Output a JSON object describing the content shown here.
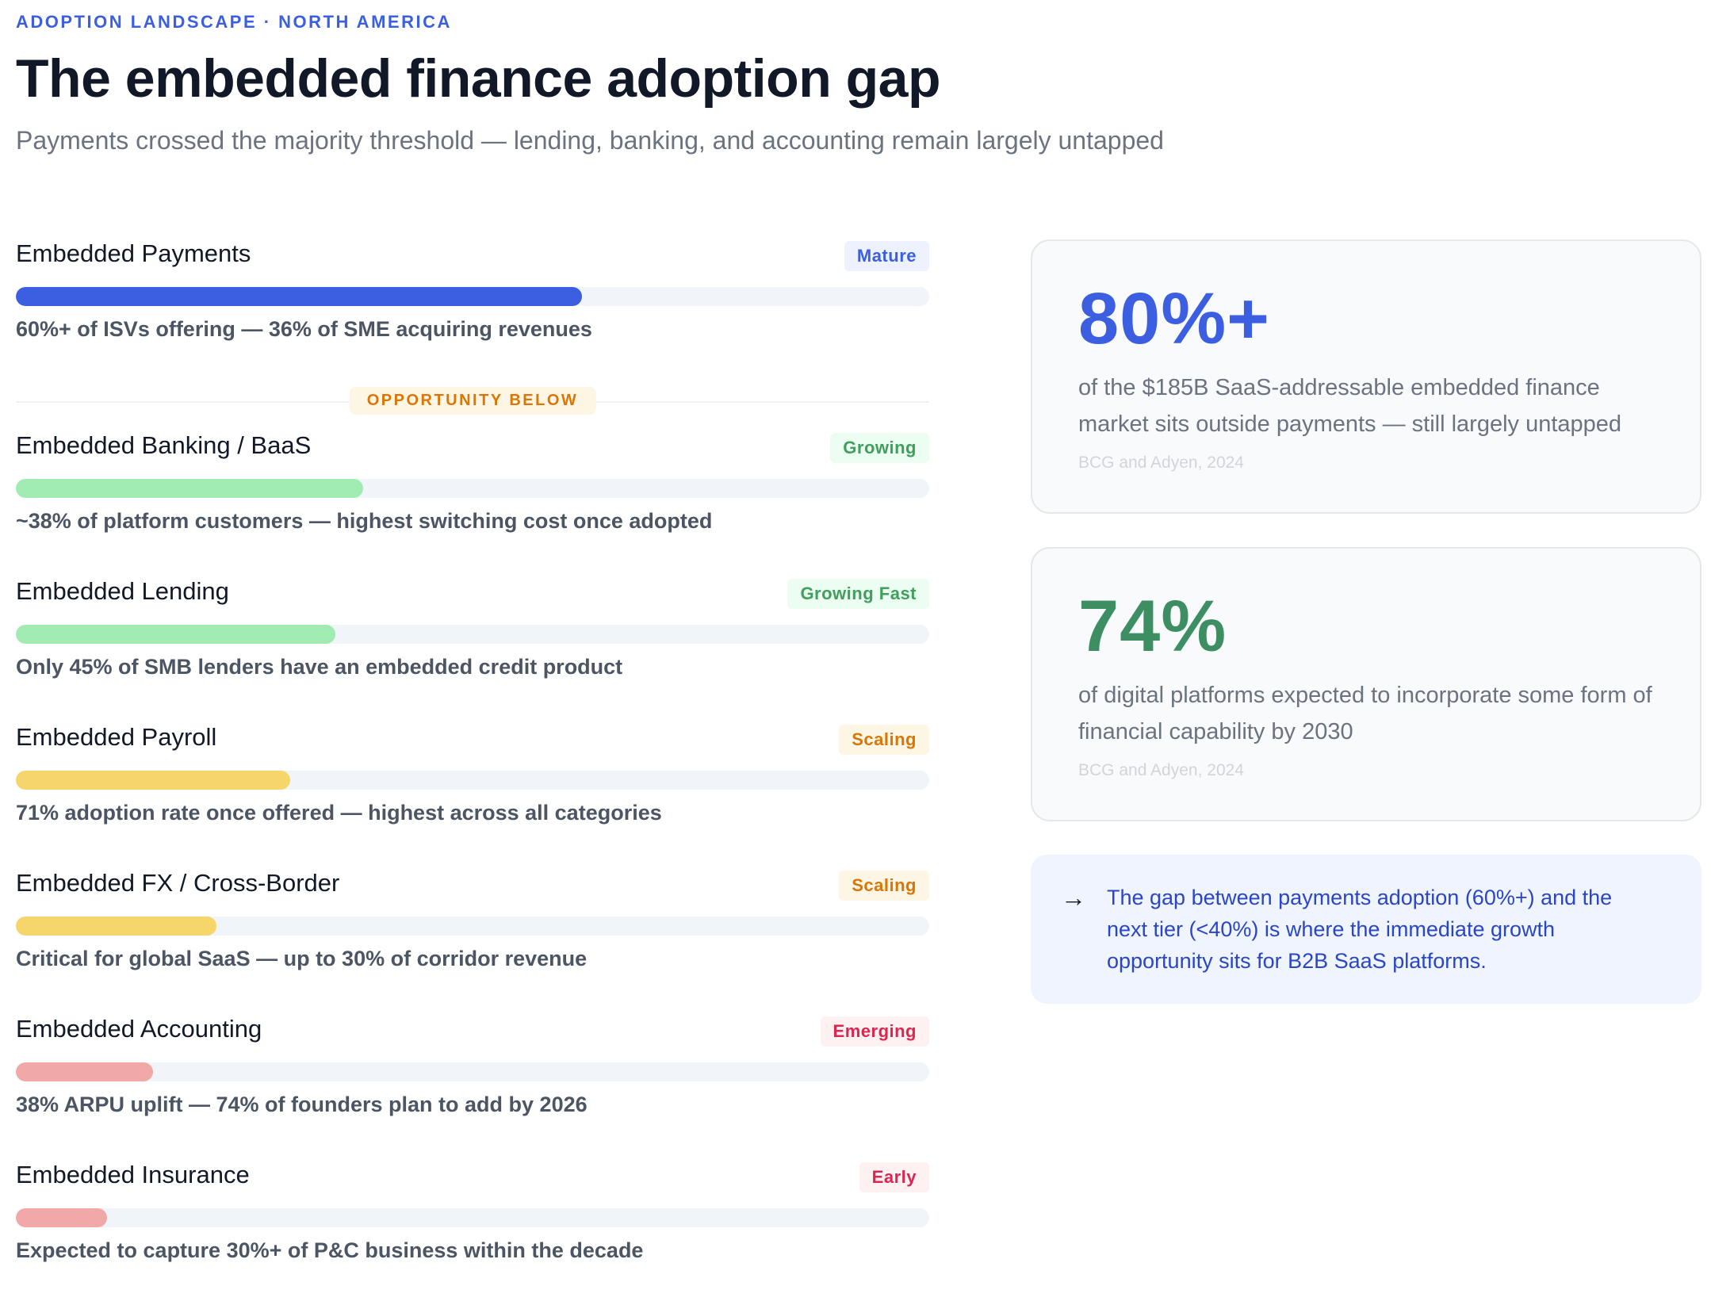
{
  "header": {
    "eyebrow": "ADOPTION LANDSCAPE · NORTH AMERICA",
    "title": "The embedded finance adoption gap",
    "subtitle": "Payments crossed the majority threshold — lending, banking, and accounting remain largely untapped"
  },
  "divider_label": "OPPORTUNITY BELOW",
  "categories": [
    {
      "name": "Embedded Payments",
      "badge": "Mature",
      "progress": 62,
      "desc": "60%+ of ISVs offering — 36% of SME acquiring revenues",
      "bar_color": "#3b5fe0",
      "badge_bg": "#eef2ff",
      "badge_color": "#3b5fe0"
    },
    {
      "name": "Embedded Banking / BaaS",
      "badge": "Growing",
      "progress": 38,
      "desc": "~38% of platform customers — highest switching cost once adopted",
      "bar_color": "#a0ecb3",
      "badge_bg": "#ecfdf1",
      "badge_color": "#3f9f5c"
    },
    {
      "name": "Embedded Lending",
      "badge": "Growing Fast",
      "progress": 35,
      "desc": "Only 45% of SMB lenders have an embedded credit product",
      "bar_color": "#a0ecb3",
      "badge_bg": "#ecfdf1",
      "badge_color": "#3f9f5c"
    },
    {
      "name": "Embedded Payroll",
      "badge": "Scaling",
      "progress": 30,
      "desc": "71% adoption rate once offered — highest across all categories",
      "bar_color": "#f6d56b",
      "badge_bg": "#fef6e4",
      "badge_color": "#d97706"
    },
    {
      "name": "Embedded FX / Cross-Border",
      "badge": "Scaling",
      "progress": 22,
      "desc": "Critical for global SaaS — up to 30% of corridor revenue",
      "bar_color": "#f6d56b",
      "badge_bg": "#fef6e4",
      "badge_color": "#d97706"
    },
    {
      "name": "Embedded Accounting",
      "badge": "Emerging",
      "progress": 15,
      "desc": "38% ARPU uplift — 74% of founders plan to add by 2026",
      "bar_color": "#f0a8a8",
      "badge_bg": "#fef1f2",
      "badge_color": "#dc2650"
    },
    {
      "name": "Embedded Insurance",
      "badge": "Early",
      "progress": 10,
      "desc": "Expected to capture 30%+ of P&C business within the decade",
      "bar_color": "#f0a8a8",
      "badge_bg": "#fef1f2",
      "badge_color": "#dc2650"
    }
  ],
  "stats": [
    {
      "value": "80%+",
      "text": "of the $185B SaaS-addressable embedded finance market sits outside payments — still largely untapped",
      "source": "BCG and Adyen, 2024",
      "color": "#3b5fe0"
    },
    {
      "value": "74%",
      "text": "of digital platforms expected to incorporate some form of financial capability by 2030",
      "source": "BCG and Adyen, 2024",
      "color": "#3d8f63"
    }
  ],
  "note": {
    "arrow": "→",
    "text": "The gap between payments adoption (60%+) and the next tier (<40%) is where the immediate growth opportunity sits for B2B SaaS platforms."
  }
}
